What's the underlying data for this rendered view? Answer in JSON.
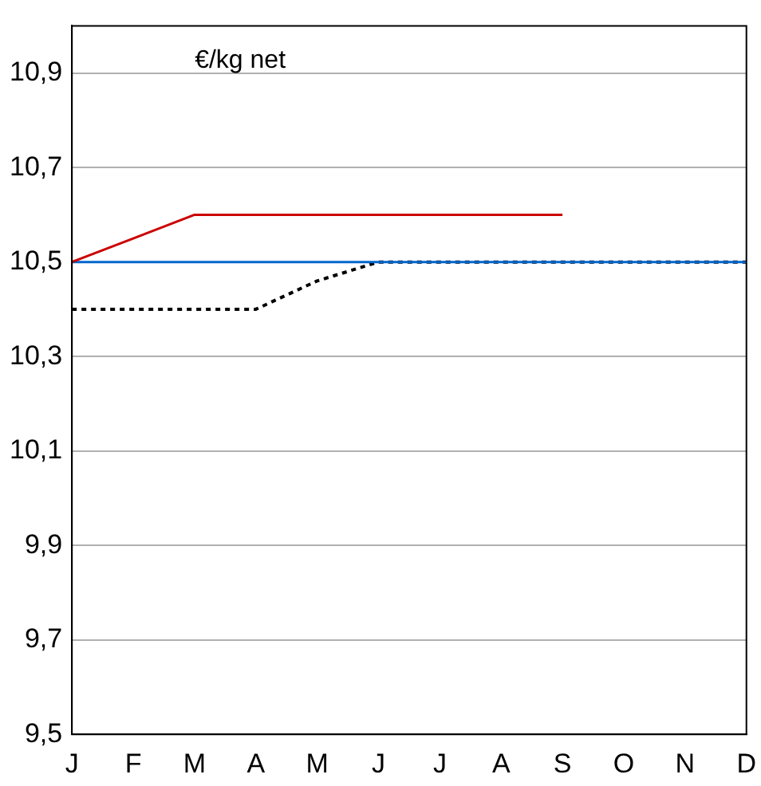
{
  "chart_data": {
    "type": "line",
    "ylabel": "€/kg net",
    "categories": [
      "J",
      "F",
      "M",
      "A",
      "M",
      "J",
      "J",
      "A",
      "S",
      "O",
      "N",
      "D"
    ],
    "series": [
      {
        "color": "#cc0000",
        "line_style": "solid",
        "values": [
          10.5,
          10.55,
          10.6,
          10.6,
          10.6,
          10.6,
          10.6,
          10.6,
          10.6,
          null,
          null,
          null
        ]
      },
      {
        "color": "#0066cc",
        "line_style": "solid",
        "values": [
          10.5,
          10.5,
          10.5,
          10.5,
          10.5,
          10.5,
          10.5,
          10.5,
          10.5,
          10.5,
          10.5,
          10.5
        ]
      },
      {
        "color": "#000000",
        "line_style": "dotted",
        "values": [
          10.4,
          10.4,
          10.4,
          10.4,
          10.46,
          10.5,
          10.5,
          10.5,
          10.5,
          10.5,
          10.5,
          10.5
        ]
      }
    ],
    "ylim": [
      9.5,
      11.0
    ],
    "yticks": [
      {
        "value": 9.5,
        "label": "9,5"
      },
      {
        "value": 9.7,
        "label": "9,7"
      },
      {
        "value": 9.9,
        "label": "9,9"
      },
      {
        "value": 10.1,
        "label": "10,1"
      },
      {
        "value": 10.3,
        "label": "10,3"
      },
      {
        "value": 10.5,
        "label": "10,5"
      },
      {
        "value": 10.7,
        "label": "10,7"
      },
      {
        "value": 10.9,
        "label": "10,9"
      }
    ],
    "grid": "y",
    "legend": false,
    "marker": "none"
  }
}
